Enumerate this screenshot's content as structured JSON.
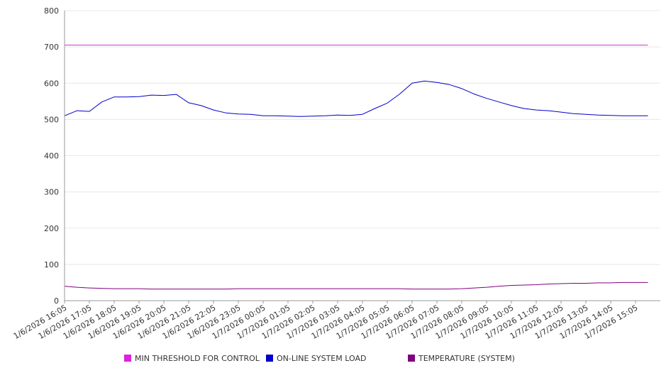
{
  "chart_data": {
    "type": "line",
    "y_ticks": [
      "0",
      "100",
      "200",
      "300",
      "400",
      "500",
      "600",
      "700",
      "800"
    ],
    "ylim": [
      0,
      800
    ],
    "grid": true,
    "legend_position": "bottom",
    "x_tick_labels": [
      "1/6/2026 16:05",
      "1/6/2026 17:05",
      "1/6/2026 18:05",
      "1/6/2026 19:05",
      "1/6/2026 20:05",
      "1/6/2026 21:05",
      "1/6/2026 22:05",
      "1/6/2026 23:05",
      "1/7/2026 00:05",
      "1/7/2026 01:05",
      "1/7/2026 02:05",
      "1/7/2026 03:05",
      "1/7/2026 04:05",
      "1/7/2026 05:05",
      "1/7/2026 06:05",
      "1/7/2026 07:05",
      "1/7/2026 08:05",
      "1/7/2026 09:05",
      "1/7/2026 10:05",
      "1/7/2026 11:05",
      "1/7/2026 12:05",
      "1/7/2026 13:05",
      "1/7/2026 14:05",
      "1/7/2026 15:05"
    ],
    "x": [
      "1/6/2026 16:05",
      "1/6/2026 16:35",
      "1/6/2026 17:05",
      "1/6/2026 17:35",
      "1/6/2026 18:05",
      "1/6/2026 18:35",
      "1/6/2026 19:05",
      "1/6/2026 19:35",
      "1/6/2026 20:05",
      "1/6/2026 20:35",
      "1/6/2026 21:05",
      "1/6/2026 21:35",
      "1/6/2026 22:05",
      "1/6/2026 22:35",
      "1/6/2026 23:05",
      "1/6/2026 23:35",
      "1/7/2026 00:05",
      "1/7/2026 00:35",
      "1/7/2026 01:05",
      "1/7/2026 01:35",
      "1/7/2026 02:05",
      "1/7/2026 02:35",
      "1/7/2026 03:05",
      "1/7/2026 03:35",
      "1/7/2026 04:05",
      "1/7/2026 04:35",
      "1/7/2026 05:05",
      "1/7/2026 05:35",
      "1/7/2026 06:05",
      "1/7/2026 06:35",
      "1/7/2026 07:05",
      "1/7/2026 07:35",
      "1/7/2026 08:05",
      "1/7/2026 08:35",
      "1/7/2026 09:05",
      "1/7/2026 09:35",
      "1/7/2026 10:05",
      "1/7/2026 10:35",
      "1/7/2026 11:05",
      "1/7/2026 11:35",
      "1/7/2026 12:05",
      "1/7/2026 12:35",
      "1/7/2026 13:05",
      "1/7/2026 13:35",
      "1/7/2026 14:05",
      "1/7/2026 14:35",
      "1/7/2026 15:05",
      "1/7/2026 15:35"
    ],
    "series": [
      {
        "name": "MIN THRESHOLD FOR CONTROL",
        "color": "#cc33cc",
        "values": [
          705,
          705,
          705,
          705,
          705,
          705,
          705,
          705,
          705,
          705,
          705,
          705,
          705,
          705,
          705,
          705,
          705,
          705,
          705,
          705,
          705,
          705,
          705,
          705,
          705,
          705,
          705,
          705,
          705,
          705,
          705,
          705,
          705,
          705,
          705,
          705,
          705,
          705,
          705,
          705,
          705,
          705,
          705,
          705,
          705,
          705,
          705,
          705
        ]
      },
      {
        "name": "ON-LINE SYSTEM LOAD",
        "color": "#0000cc",
        "values": [
          510,
          524,
          522,
          548,
          562,
          562,
          563,
          567,
          566,
          569,
          546,
          538,
          526,
          518,
          515,
          514,
          510,
          510,
          509,
          508,
          509,
          510,
          512,
          511,
          514,
          530,
          545,
          570,
          600,
          606,
          602,
          596,
          585,
          570,
          558,
          548,
          538,
          530,
          526,
          524,
          520,
          516,
          514,
          512,
          511,
          510,
          510,
          510
        ]
      },
      {
        "name": "TEMPERATURE (SYSTEM)",
        "color": "#800080",
        "values": [
          40,
          37,
          35,
          34,
          33,
          33,
          33,
          32,
          32,
          32,
          32,
          32,
          32,
          32,
          33,
          33,
          33,
          33,
          33,
          33,
          33,
          33,
          33,
          33,
          33,
          33,
          33,
          33,
          32,
          32,
          32,
          32,
          33,
          35,
          37,
          40,
          42,
          43,
          44,
          46,
          47,
          48,
          48,
          49,
          49,
          50,
          50,
          50
        ]
      }
    ]
  }
}
